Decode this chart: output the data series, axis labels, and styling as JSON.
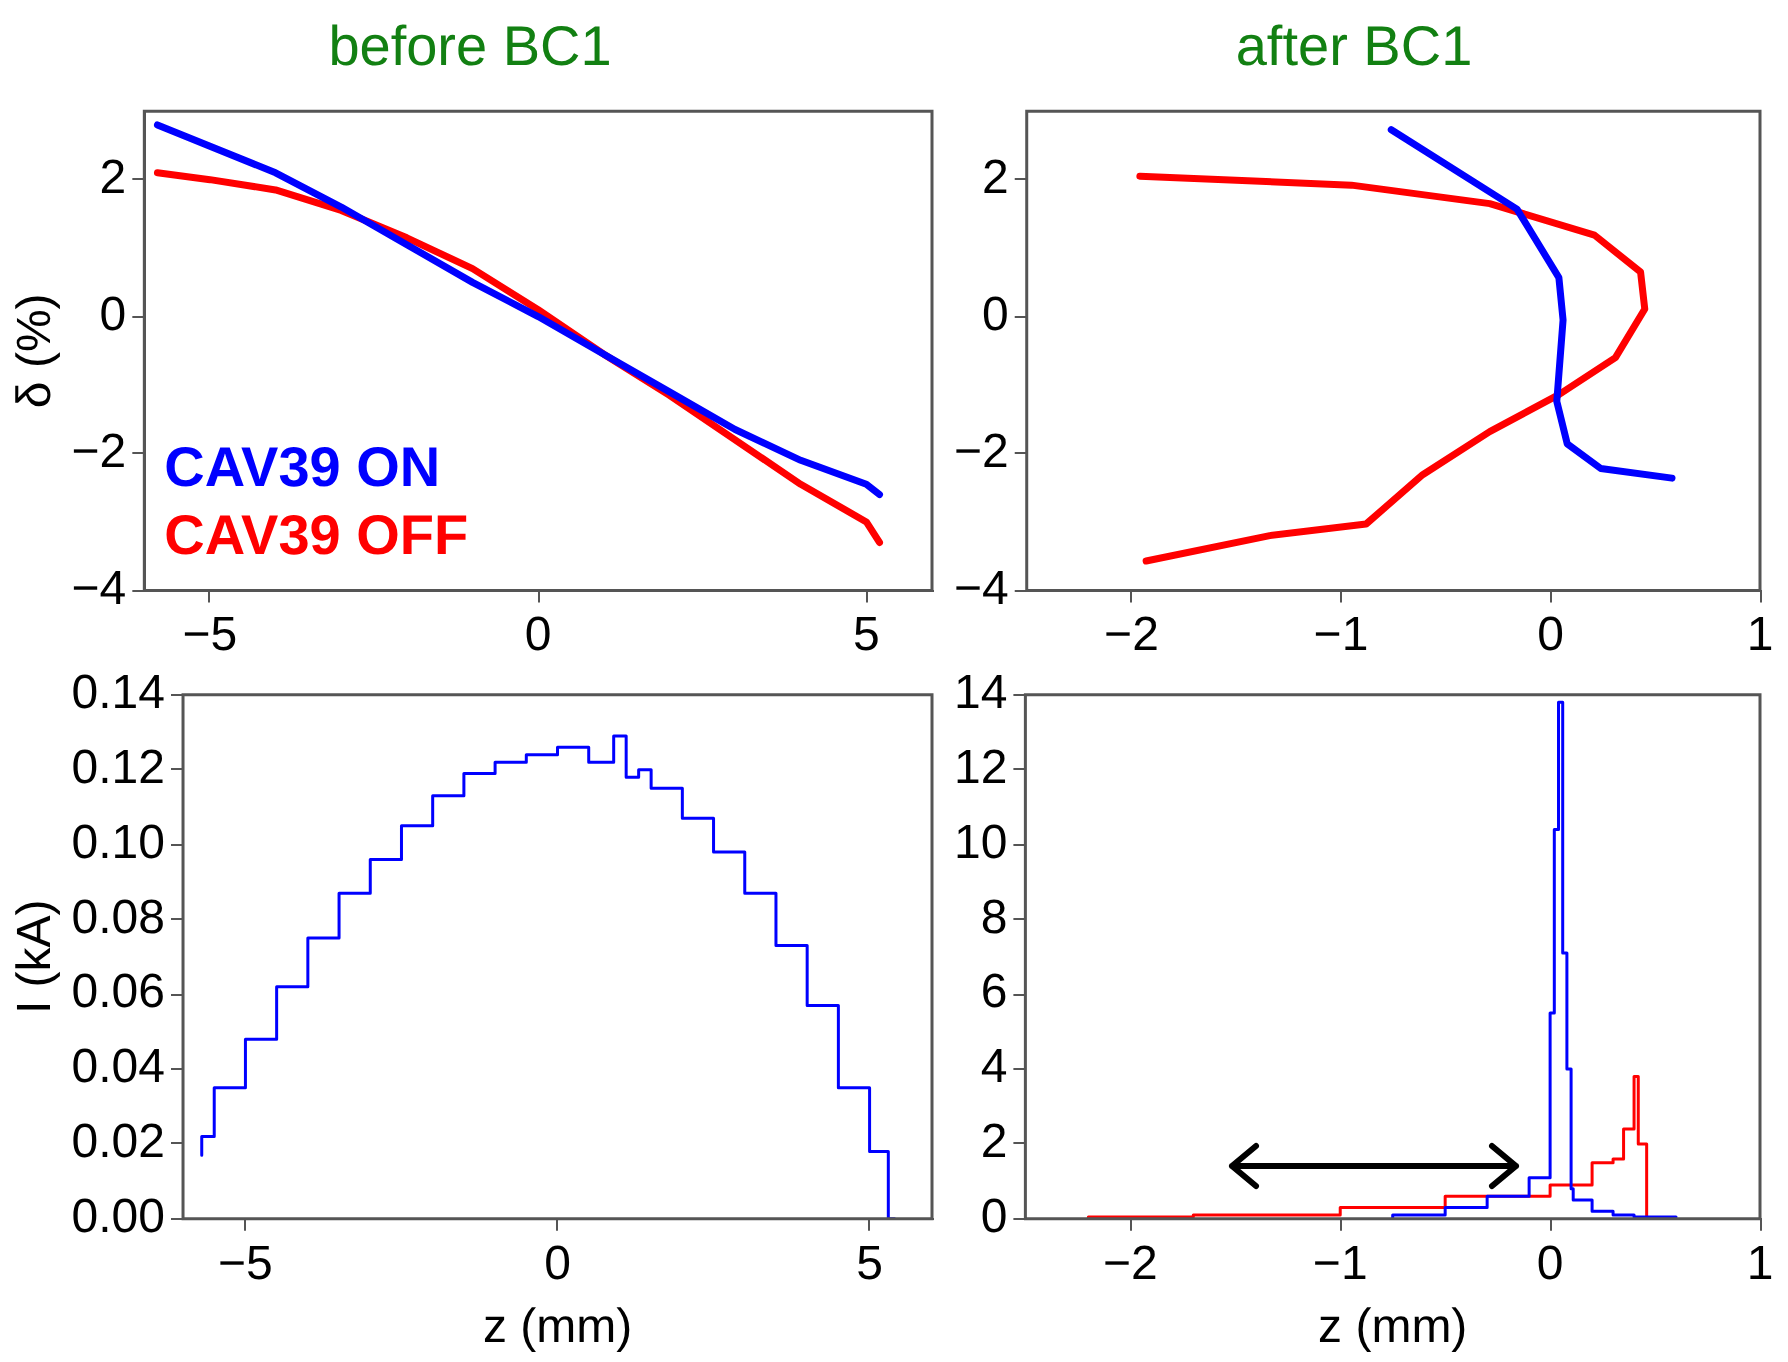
{
  "chart_data": [
    {
      "type": "line",
      "title": "before BC1",
      "ylabel": "δ (%)",
      "xlim": [
        -6,
        6
      ],
      "xticks": [
        -5,
        0,
        5
      ],
      "ylim": [
        -4,
        3
      ],
      "yticks": [
        -4,
        -2,
        0,
        2
      ],
      "legend": "bottom left",
      "series": [
        {
          "name": "CAV39 ON",
          "color": "#0000ff",
          "x": [
            -5.8,
            -4,
            -3,
            -2,
            -1,
            0,
            1,
            2,
            3,
            4,
            5,
            5.2
          ],
          "values": [
            2.8,
            2.1,
            1.6,
            1.05,
            0.5,
            0,
            -0.55,
            -1.1,
            -1.65,
            -2.1,
            -2.45,
            -2.6
          ]
        },
        {
          "name": "CAV39 OFF",
          "color": "#ff0000",
          "x": [
            -5.8,
            -5,
            -4,
            -3,
            -2,
            -1,
            0,
            1,
            2,
            3,
            4,
            5,
            5.2
          ],
          "values": [
            2.1,
            2.0,
            1.85,
            1.55,
            1.15,
            0.7,
            0.1,
            -0.55,
            -1.15,
            -1.8,
            -2.45,
            -3.0,
            -3.3
          ]
        }
      ]
    },
    {
      "type": "line",
      "title": "after BC1",
      "xlim": [
        -2.5,
        1
      ],
      "xticks": [
        -2,
        -1,
        0,
        1
      ],
      "ylim": [
        -4,
        3
      ],
      "yticks": [
        -4,
        -2,
        0,
        2
      ],
      "series": [
        {
          "color": "#0000ff",
          "x": [
            -0.76,
            -0.16,
            0.04,
            0.06,
            0.03,
            0.08,
            0.24,
            0.58
          ],
          "values": [
            2.73,
            1.57,
            0.57,
            -0.05,
            -1.24,
            -1.86,
            -2.22,
            -2.36
          ]
        },
        {
          "color": "#ff0000",
          "x": [
            -1.96,
            -0.95,
            -0.29,
            0.21,
            0.43,
            0.45,
            0.31,
            0.04,
            -0.29,
            -0.61,
            -0.88,
            -1.34,
            -1.93
          ],
          "values": [
            2.05,
            1.92,
            1.65,
            1.19,
            0.65,
            0.11,
            -0.6,
            -1.14,
            -1.68,
            -2.31,
            -3.03,
            -3.2,
            -3.57
          ]
        }
      ]
    },
    {
      "type": "step",
      "xlabel": "z (mm)",
      "ylabel": "I (kA)",
      "xlim": [
        -6,
        6
      ],
      "xticks": [
        -5,
        0,
        5
      ],
      "ylim": [
        0,
        0.14
      ],
      "yticks": [
        {
          "value": 0,
          "label": "0.00"
        },
        {
          "value": 0.02,
          "label": "0.02"
        },
        {
          "value": 0.04,
          "label": "0.04"
        },
        {
          "value": 0.06,
          "label": "0.06"
        },
        {
          "value": 0.08,
          "label": "0.08"
        },
        {
          "value": 0.1,
          "label": "0.10"
        },
        {
          "value": 0.12,
          "label": "0.12"
        },
        {
          "value": 0.14,
          "label": "0.14"
        }
      ],
      "series": [
        {
          "color": "#0000ff",
          "x": [
            -5.7,
            -5.5,
            -5,
            -4.5,
            -4,
            -3.5,
            -3,
            -2.5,
            -2,
            -1.5,
            -1,
            -0.5,
            0,
            0.5,
            0.9,
            1.1,
            1.3,
            1.5,
            2,
            2.5,
            3,
            3.5,
            4,
            4.5,
            5,
            5.3,
            5.4
          ],
          "values": [
            0.017,
            0.022,
            0.035,
            0.048,
            0.062,
            0.075,
            0.087,
            0.096,
            0.105,
            0.113,
            0.119,
            0.122,
            0.124,
            0.126,
            0.122,
            0.129,
            0.118,
            0.12,
            0.115,
            0.107,
            0.098,
            0.087,
            0.073,
            0.057,
            0.035,
            0.018,
            0
          ]
        }
      ]
    },
    {
      "type": "step",
      "xlabel": "z (mm)",
      "xlim": [
        -2.5,
        1
      ],
      "xticks": [
        -2,
        -1,
        0,
        1
      ],
      "ylim": [
        0,
        14
      ],
      "yticks": [
        0,
        2,
        4,
        6,
        8,
        10,
        12,
        14
      ],
      "series": [
        {
          "color": "#0000ff",
          "x": [
            -0.75,
            -0.5,
            -0.3,
            -0.1,
            0,
            0.02,
            0.04,
            0.06,
            0.08,
            0.1,
            0.11,
            0.2,
            0.3,
            0.4,
            0.6
          ],
          "values": [
            0,
            0.1,
            0.3,
            0.6,
            1.1,
            5.5,
            10.4,
            13.8,
            7.1,
            4.0,
            0.8,
            0.5,
            0.2,
            0.1,
            0.05
          ]
        },
        {
          "color": "#ff0000",
          "x": [
            -2.2,
            -1.7,
            -1,
            -0.5,
            0,
            0.2,
            0.3,
            0.35,
            0.4,
            0.42,
            0.46,
            0.5
          ],
          "values": [
            0,
            0.05,
            0.1,
            0.3,
            0.6,
            0.9,
            1.5,
            1.6,
            2.4,
            3.8,
            2.0,
            0
          ]
        }
      ]
    }
  ]
}
